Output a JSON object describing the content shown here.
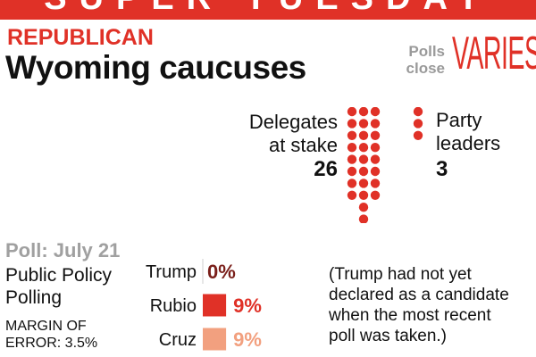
{
  "banner": {
    "title": "SUPER TUESDAY"
  },
  "header": {
    "party": "REPUBLICAN",
    "contest": "Wyoming caucuses",
    "polls_label_line1": "Polls",
    "polls_label_line2": "close",
    "polls_value": "VARIES"
  },
  "delegates": {
    "label_line1": "Delegates",
    "label_line2": "at stake",
    "value": "26",
    "party_leaders_label_line1": "Party",
    "party_leaders_label_line2": "leaders",
    "party_leaders_value": "3"
  },
  "poll": {
    "date": "Poll: July 21",
    "pollster_line1": "Public Policy",
    "pollster_line2": "Polling",
    "moe_line1": "MARGIN OF",
    "moe_line2": "ERROR: 3.5%",
    "note_line1": "(Trump had not yet",
    "note_line2": "declared as a candidate",
    "note_line3": "when the most recent",
    "note_line4": "poll was taken.)"
  },
  "colors": {
    "accent": "#e03127",
    "dot": "#e03127",
    "trump": "#7a1f1a",
    "rubio": "#e03127",
    "cruz": "#f2a07f"
  },
  "chart_data": {
    "type": "bar",
    "categories": [
      "Trump",
      "Rubio",
      "Cruz"
    ],
    "values": [
      0,
      9,
      9
    ],
    "value_labels": [
      "0%",
      "9%",
      "9%"
    ],
    "colors": [
      "#7a1f1a",
      "#e03127",
      "#f2a07f"
    ],
    "unit": "%",
    "delegates_dots": 26,
    "party_leaders_dots": 3
  }
}
